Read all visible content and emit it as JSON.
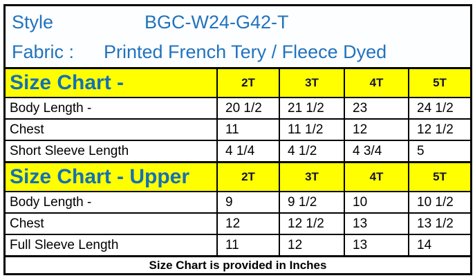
{
  "header": {
    "style_label": "Style",
    "style_value": "BGC-W24-G42-T",
    "fabric_label": "Fabric :",
    "fabric_value": "Printed French Tery / Fleece Dyed"
  },
  "sections": [
    {
      "title": "Size Chart -",
      "sizes": [
        "2T",
        "3T",
        "4T",
        "5T"
      ],
      "rows": [
        {
          "label": "Body Length -",
          "values": [
            "20 1/2",
            "21 1/2",
            "23",
            "24 1/2"
          ]
        },
        {
          "label": "Chest",
          "values": [
            "11",
            "11 1/2",
            "12",
            "12 1/2"
          ]
        },
        {
          "label": "Short Sleeve Length",
          "values": [
            "4 1/4",
            "4 1/2",
            "4 3/4",
            "5"
          ]
        }
      ]
    },
    {
      "title": "Size Chart - Upper",
      "sizes": [
        "2T",
        "3T",
        "4T",
        "5T"
      ],
      "rows": [
        {
          "label": "Body Length -",
          "values": [
            "9",
            "9 1/2",
            "10",
            "10 1/2"
          ]
        },
        {
          "label": "Chest",
          "values": [
            "12",
            "12 1/2",
            "13",
            "13 1/2"
          ]
        },
        {
          "label": "Full Sleeve Length",
          "values": [
            "11",
            "12",
            "13",
            "14"
          ]
        }
      ]
    }
  ],
  "footer": {
    "note": "Size Chart is provided in Inches"
  },
  "colors": {
    "header_text_blue": "#2173bd",
    "section_title_blue": "#1470b4",
    "size_header_text": "#131335",
    "header_row_yellow": "#ffff00",
    "border_black": "#000000",
    "background_white": "#ffffff"
  }
}
